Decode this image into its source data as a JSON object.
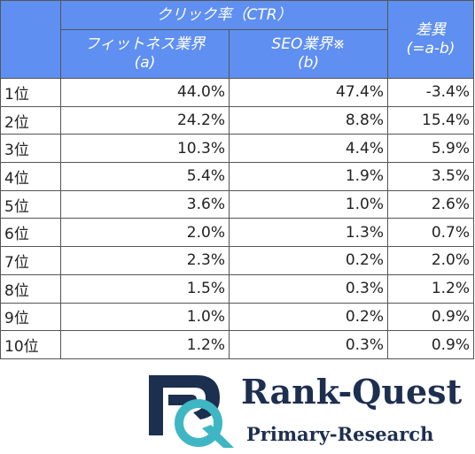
{
  "table": {
    "header": {
      "group": "クリック率（CTR）",
      "col_a": [
        "フィットネス業界",
        "(a)"
      ],
      "col_b": [
        "SEO業界※",
        "(b)"
      ],
      "diff": [
        "差異",
        "(=a-b)"
      ]
    },
    "rows": [
      [
        "1位",
        "44.0%",
        "47.4%",
        "-3.4%"
      ],
      [
        "2位",
        "24.2%",
        "8.8%",
        "15.4%"
      ],
      [
        "3位",
        "10.3%",
        "4.4%",
        "5.9%"
      ],
      [
        "4位",
        "5.4%",
        "1.9%",
        "3.5%"
      ],
      [
        "5位",
        "3.6%",
        "1.0%",
        "2.6%"
      ],
      [
        "6位",
        "2.0%",
        "1.3%",
        "0.7%"
      ],
      [
        "7位",
        "2.3%",
        "0.2%",
        "2.0%"
      ],
      [
        "8位",
        "1.5%",
        "0.3%",
        "1.2%"
      ],
      [
        "9位",
        "1.0%",
        "0.2%",
        "0.9%"
      ],
      [
        "10位",
        "1.2%",
        "0.3%",
        "0.9%"
      ]
    ]
  },
  "logo": {
    "name": "Rank-Quest",
    "tagline": "Primary-Research"
  }
}
